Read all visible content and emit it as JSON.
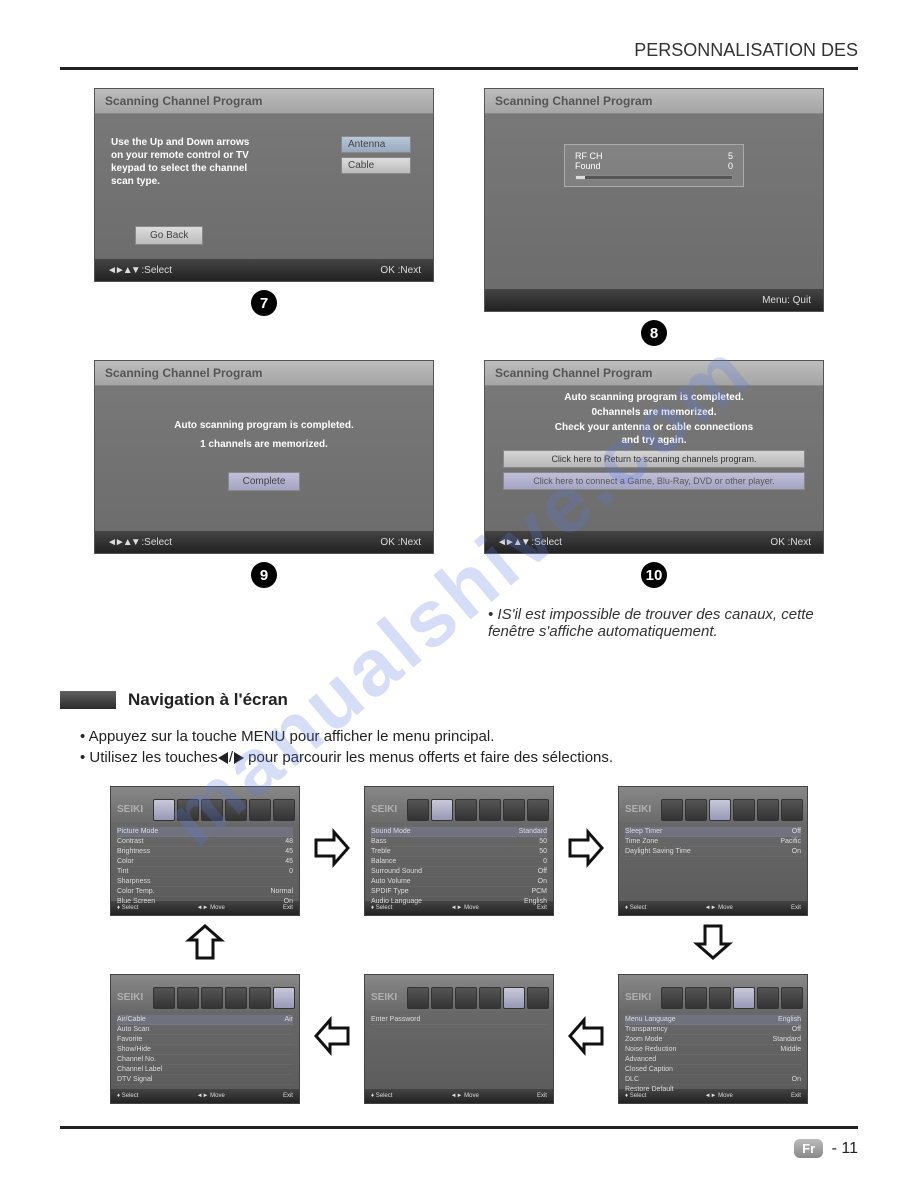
{
  "header": {
    "title": "PERSONNALISATION DES"
  },
  "watermark": "manualshive.com",
  "s7": {
    "title": "Scanning Channel Program",
    "text": "Use the Up and Down arrows on your remote control or TV keypad to select the channel scan type.",
    "opt1": "Antenna",
    "opt2": "Cable",
    "goback": "Go Back",
    "fl": ":Select",
    "fr": "OK :Next",
    "num": "7"
  },
  "s8": {
    "title": "Scanning Channel Program",
    "rfch": "RF CH",
    "rfchv": "5",
    "found": "Found",
    "foundv": "0",
    "fr": "Menu: Quit",
    "num": "8"
  },
  "s9": {
    "title": "Scanning Channel Program",
    "l1": "Auto scanning program is completed.",
    "l2": "1    channels are memorized.",
    "btn": "Complete",
    "fl": ":Select",
    "fr": "OK :Next",
    "num": "9"
  },
  "s10": {
    "title": "Scanning Channel Program",
    "l1": "Auto scanning program is completed.",
    "l2": "0channels are memorized.",
    "l3": "Check your antenna or cable connections",
    "l4": "and try again.",
    "b1": "Click here to Return to scanning channels program.",
    "b2": "Click here to connect a Game, Blu-Ray, DVD or other player.",
    "fl": ":Select",
    "fr": "OK :Next",
    "num": "10"
  },
  "note": "IS'il est impossible de trouver des canaux, cette fenêtre s'affiche automatiquement.",
  "section": {
    "title": "Navigation à l'écran"
  },
  "bul1": "Appuyez sur la touche MENU pour afficher le menu principal.",
  "bul2a": "Utilisez les touches",
  "bul2b": " pour parcourir les menus offerts et faire des sélections.",
  "menus": {
    "logo": "SEIKI",
    "foot_l": "Select",
    "foot_m": "Move",
    "foot_r": "Exit",
    "m1": {
      "hl": "Energy Saving",
      "rows": [
        [
          "Picture Mode",
          ""
        ],
        [
          "Contrast",
          "48"
        ],
        [
          "Brightness",
          "45"
        ],
        [
          "Color",
          "45"
        ],
        [
          "Tint",
          "0"
        ],
        [
          "Sharpness",
          ""
        ],
        [
          "Color Temp.",
          "Normal"
        ],
        [
          "Blue Screen",
          "On"
        ]
      ]
    },
    "m2": {
      "rows": [
        [
          "Sound Mode",
          "Standard"
        ],
        [
          "Bass",
          "50"
        ],
        [
          "Treble",
          "50"
        ],
        [
          "Balance",
          "0"
        ],
        [
          "Surround Sound",
          "Off"
        ],
        [
          "Auto Volume",
          "On"
        ],
        [
          "SPDIF Type",
          "PCM"
        ],
        [
          "Audio Language",
          "English"
        ]
      ]
    },
    "m3": {
      "rows": [
        [
          "Sleep Timer",
          "Off"
        ],
        [
          "Time Zone",
          "Pacific"
        ],
        [
          "Daylight Saving Time",
          "On"
        ]
      ]
    },
    "m4": {
      "rows": [
        [
          "Air/Cable",
          "Air"
        ],
        [
          "Auto Scan",
          ""
        ],
        [
          "Favorite",
          ""
        ],
        [
          "Show/Hide",
          ""
        ],
        [
          "Channel No.",
          ""
        ],
        [
          "Channel Label",
          ""
        ],
        [
          "DTV Signal",
          ""
        ]
      ]
    },
    "m5": {
      "rows": [
        [
          "Enter Password",
          ""
        ]
      ]
    },
    "m6": {
      "rows": [
        [
          "Menu Language",
          "English"
        ],
        [
          "Transparency",
          "Off"
        ],
        [
          "Zoom Mode",
          "Standard"
        ],
        [
          "Noise Reduction",
          "Middle"
        ],
        [
          "Advanced",
          ""
        ],
        [
          "Closed Caption",
          ""
        ],
        [
          "DLC",
          "On"
        ],
        [
          "Restore Default",
          ""
        ]
      ]
    }
  },
  "footer": {
    "lang": "Fr",
    "page": "- 11"
  }
}
